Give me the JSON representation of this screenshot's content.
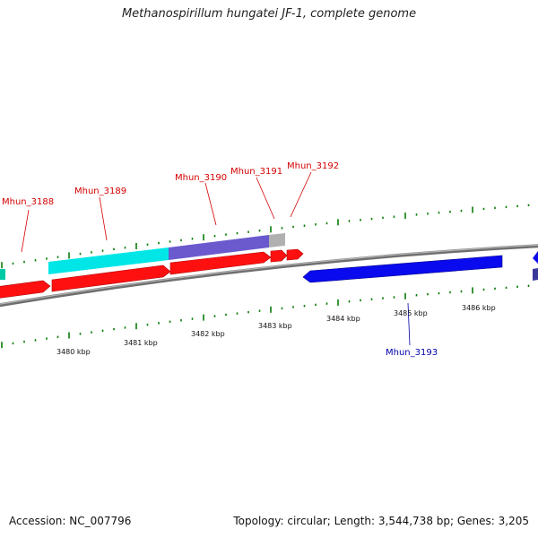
{
  "title": "Methanospirillum hungatei JF-1, complete genome",
  "footer": {
    "accession": "Accession: NC_007796",
    "topology": "Topology: circular; Length: 3,544,738 bp; Genes: 3,205"
  },
  "colors": {
    "red": "#ff0000",
    "blue": "#0000ee",
    "cyan": "#00e5e5",
    "slate": "#6a5acd",
    "gray": "#aaaaaa",
    "tick": "#0a7d0a",
    "backbone": "#888888"
  },
  "scale_labels": [
    "3480 kbp",
    "3481 kbp",
    "3482 kbp",
    "3483 kbp",
    "3484 kbp",
    "3485 kbp",
    "3486 kbp"
  ],
  "gene_labels": [
    {
      "name": "Mhun_3188",
      "strand": "forward"
    },
    {
      "name": "Mhun_3189",
      "strand": "forward"
    },
    {
      "name": "Mhun_3190",
      "strand": "forward"
    },
    {
      "name": "Mhun_3191",
      "strand": "forward"
    },
    {
      "name": "Mhun_3192",
      "strand": "forward"
    },
    {
      "name": "Mhun_3193",
      "strand": "reverse"
    }
  ]
}
